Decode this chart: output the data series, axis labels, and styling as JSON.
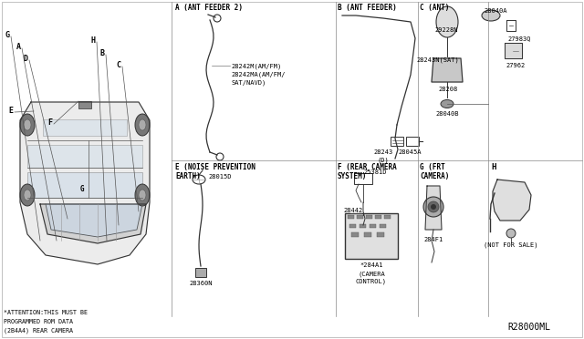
{
  "bg_color": "#ffffff",
  "text_color": "#000000",
  "fig_width": 6.4,
  "fig_height": 3.72,
  "dpi": 100,
  "sections": {
    "A_label": "A (ANT FEEDER 2)",
    "B_label": "B (ANT FEEDER)",
    "C_label": "C (ANT)",
    "E_label": "E (NOISE PREVENTION\nEARTH)",
    "F_label": "F (REAR CAMERA\nSYSTEM)",
    "G_label": "G (FRT\nCAMERA)",
    "H_label": "H"
  },
  "part_numbers": {
    "28242M": "28242M(AM/FM)",
    "28242MA_line1": "28242MA(AM/FM/",
    "28242MA_line2": "SAT/NAVD)",
    "28243N": "28243N(SAT)",
    "28243": "28243",
    "28243D": "(D)",
    "28045A": "28045A",
    "29228N": "29228N",
    "28040A": "28040A",
    "27983Q": "27983Q",
    "27962": "27962",
    "28208": "28208",
    "28040B": "28040B",
    "28015D": "28015D",
    "28360N": "28360N",
    "25381D": "25381D",
    "28442": "28442",
    "284A1_line1": "*284A1",
    "284A1_line2": "(CAMERA",
    "284A1_line3": "CONTROL)",
    "284F1": "284F1",
    "not_for_sale": "(NOT FOR SALE)",
    "ref_num": "R28000ML",
    "attention_line1": "*ATTENTION:THIS MUST BE",
    "attention_line2": "PROGRAMMED ROM DATA",
    "attention_line3": "(2B4A4) REAR CAMERA"
  }
}
